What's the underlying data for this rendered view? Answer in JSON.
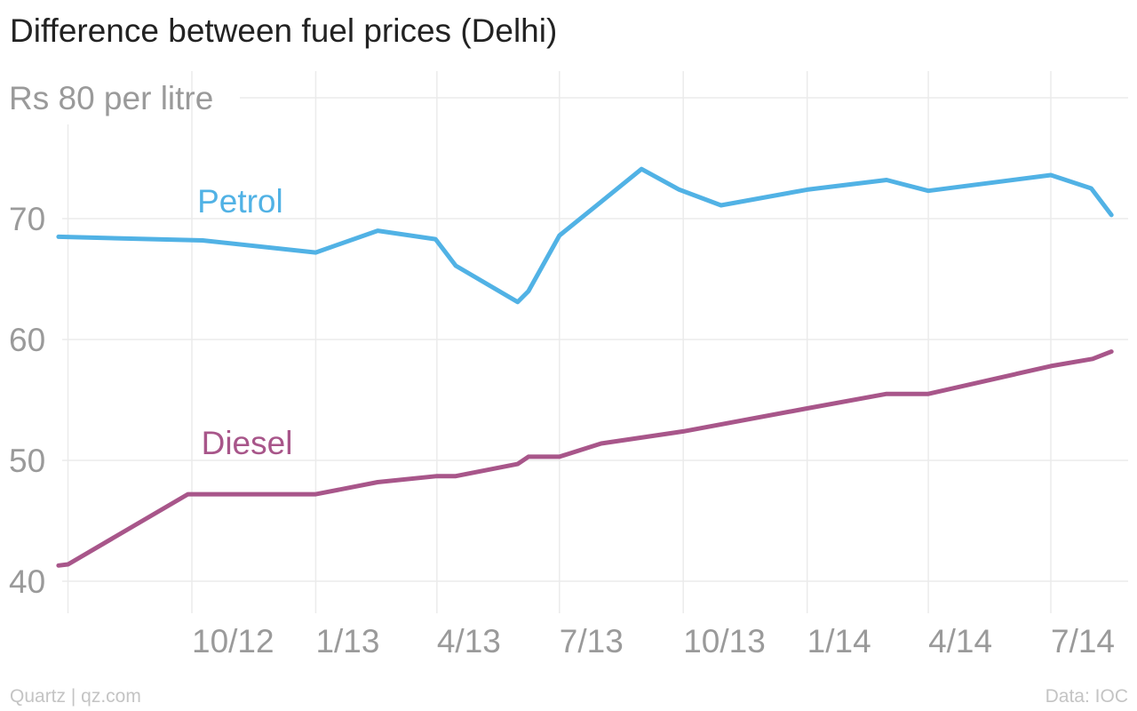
{
  "title": "Difference between fuel prices (Delhi)",
  "footer": {
    "source_left": "Quartz | qz.com",
    "source_right": "Data: IOC"
  },
  "chart_data": {
    "type": "line",
    "title": "Difference between fuel prices (Delhi)",
    "x_type": "date",
    "xlim": [
      "2012-06-01",
      "2014-08-15"
    ],
    "ylim": [
      40,
      80
    ],
    "y_ticks": [
      40,
      50,
      60,
      70,
      80
    ],
    "y_tick_labels": [
      "40",
      "50",
      "60",
      "70",
      "Rs 80 per litre"
    ],
    "x_ticks": [
      "2012-10-01",
      "2013-01-01",
      "2013-04-01",
      "2013-07-01",
      "2013-10-01",
      "2014-01-01",
      "2014-04-01",
      "2014-07-01"
    ],
    "x_tick_labels": [
      "10/12",
      "1/13",
      "4/13",
      "7/13",
      "10/13",
      "1/14",
      "4/14",
      "7/14"
    ],
    "grid": true,
    "legend": "inline labels",
    "series": [
      {
        "name": "Petrol",
        "color": "#51b2e5",
        "label_at": [
          "2012-10-05",
          71.4
        ],
        "points": [
          [
            "2012-06-24",
            68.5
          ],
          [
            "2012-10-09",
            68.2
          ],
          [
            "2013-01-01",
            67.2
          ],
          [
            "2013-02-16",
            69.0
          ],
          [
            "2013-03-31",
            68.3
          ],
          [
            "2013-04-15",
            66.1
          ],
          [
            "2013-05-31",
            63.1
          ],
          [
            "2013-06-08",
            64.0
          ],
          [
            "2013-07-01",
            68.6
          ],
          [
            "2013-07-31",
            71.3
          ],
          [
            "2013-08-31",
            74.1
          ],
          [
            "2013-09-28",
            72.4
          ],
          [
            "2013-10-29",
            71.1
          ],
          [
            "2014-01-01",
            72.4
          ],
          [
            "2014-03-01",
            73.2
          ],
          [
            "2014-04-01",
            72.3
          ],
          [
            "2014-07-01",
            73.6
          ],
          [
            "2014-07-31",
            72.5
          ],
          [
            "2014-08-15",
            70.3
          ]
        ]
      },
      {
        "name": "Diesel",
        "color": "#a8568a",
        "label_at": [
          "2012-10-08",
          51.4
        ],
        "points": [
          [
            "2012-06-24",
            41.3
          ],
          [
            "2012-07-01",
            41.4
          ],
          [
            "2012-09-28",
            47.2
          ],
          [
            "2013-01-01",
            47.2
          ],
          [
            "2013-02-16",
            48.2
          ],
          [
            "2013-04-01",
            48.7
          ],
          [
            "2013-04-15",
            48.7
          ],
          [
            "2013-05-31",
            49.7
          ],
          [
            "2013-06-08",
            50.3
          ],
          [
            "2013-07-01",
            50.3
          ],
          [
            "2013-08-01",
            51.4
          ],
          [
            "2013-10-01",
            52.4
          ],
          [
            "2014-01-01",
            54.3
          ],
          [
            "2014-03-01",
            55.5
          ],
          [
            "2014-04-01",
            55.5
          ],
          [
            "2014-07-01",
            57.8
          ],
          [
            "2014-08-01",
            58.4
          ],
          [
            "2014-08-15",
            59.0
          ]
        ]
      }
    ]
  }
}
